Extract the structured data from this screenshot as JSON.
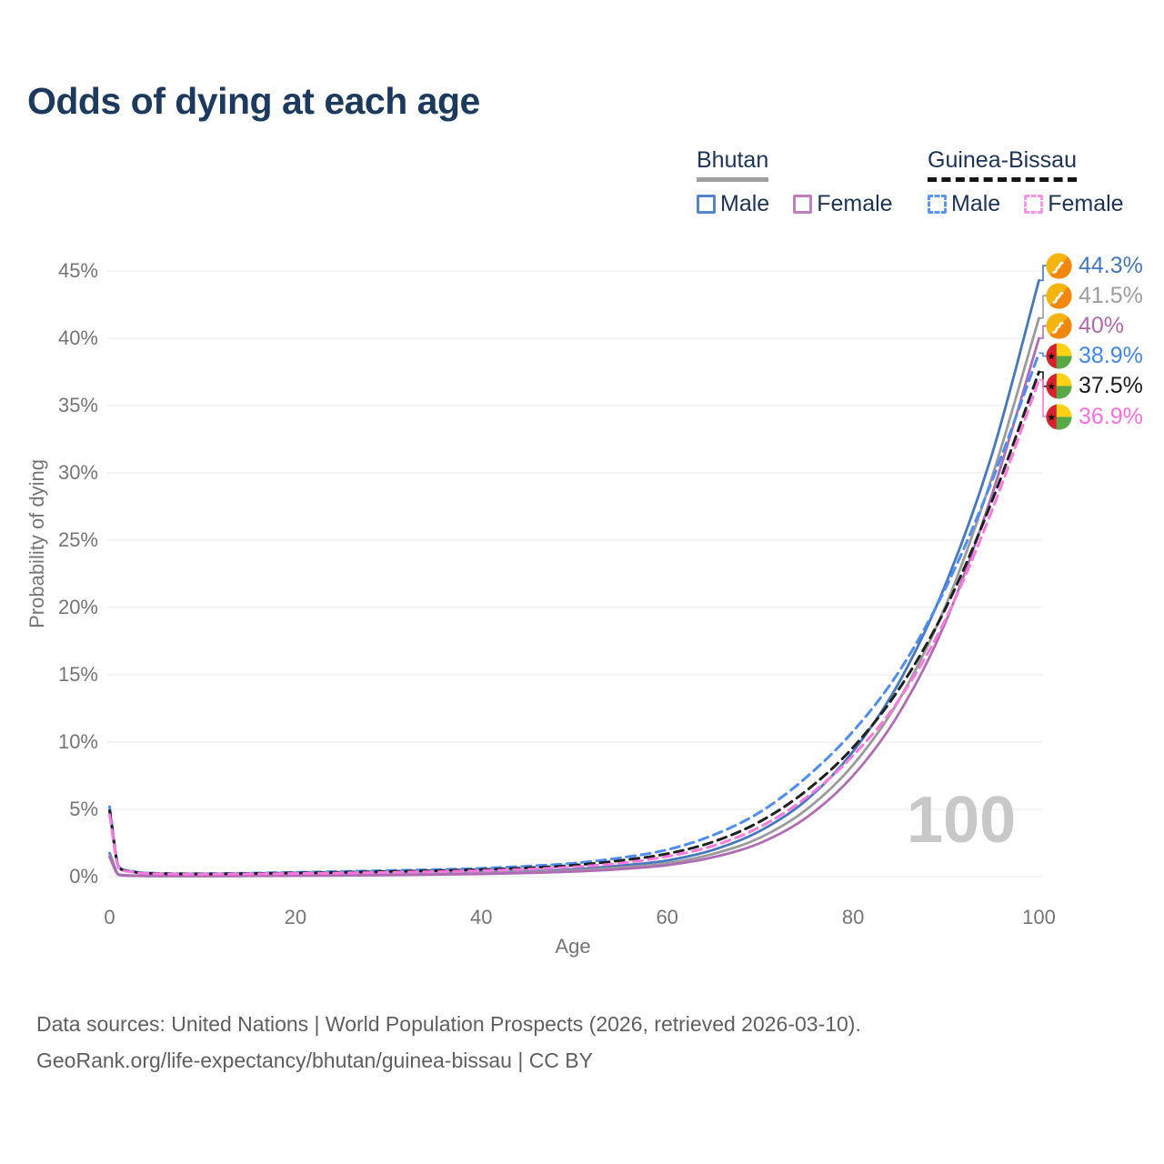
{
  "title": "Odds of dying at each age",
  "watermark": "100",
  "legend": {
    "groups": [
      {
        "label": "Bhutan",
        "line_style": "solid",
        "underline_color": "#a0a0a0",
        "items": [
          {
            "label": "Male",
            "color": "#4577bd"
          },
          {
            "label": "Female",
            "color": "#b16bb5"
          }
        ]
      },
      {
        "label": "Guinea-Bissau",
        "line_style": "dashed",
        "underline_color": "#151515",
        "items": [
          {
            "label": "Male",
            "color": "#4e8df2"
          },
          {
            "label": "Female",
            "color": "#ff78df"
          }
        ]
      }
    ]
  },
  "footer": {
    "line1": "Data sources: United Nations | World Population Prospects (2026, retrieved 2026-03-10).",
    "line2": "GeoRank.org/life-expectancy/bhutan/guinea-bissau | CC BY"
  },
  "chart_data": {
    "type": "line",
    "title": "Odds of dying at each age",
    "xlabel": "Age",
    "ylabel": "Probability of dying",
    "xlim": [
      0,
      100
    ],
    "ylim": [
      0,
      45
    ],
    "x_ticks": [
      0,
      20,
      40,
      60,
      80,
      100
    ],
    "y_ticks": [
      0,
      5,
      10,
      15,
      20,
      25,
      30,
      35,
      40,
      45
    ],
    "y_tick_suffix": "%",
    "grid": true,
    "grid_color": "#ededef",
    "legend_position": "top-right",
    "x": [
      0,
      1,
      2,
      3,
      5,
      10,
      15,
      20,
      25,
      30,
      35,
      40,
      45,
      50,
      55,
      60,
      65,
      70,
      75,
      80,
      85,
      90,
      95,
      100
    ],
    "series": [
      {
        "name": "Bhutan Male",
        "country": "Bhutan",
        "sex": "male",
        "flag": "bt",
        "color": "#4577bd",
        "label_color": "#4577bd",
        "dash": "solid",
        "end_label": "44.3%",
        "end_value": 44.3,
        "values": [
          1.75,
          0.16,
          0.09,
          0.07,
          0.05,
          0.05,
          0.08,
          0.12,
          0.15,
          0.18,
          0.23,
          0.3,
          0.4,
          0.55,
          0.82,
          1.2,
          2.0,
          3.4,
          5.7,
          9.3,
          14.5,
          21.8,
          31.5,
          44.3
        ]
      },
      {
        "name": "Bhutan Both sexes",
        "country": "Bhutan",
        "sex": "both",
        "flag": "bt",
        "color": "#9b9b9b",
        "label_color": "#9e9e9e",
        "dash": "solid",
        "end_label": "41.5%",
        "end_value": 41.5,
        "values": [
          1.6,
          0.14,
          0.08,
          0.06,
          0.05,
          0.04,
          0.06,
          0.09,
          0.12,
          0.15,
          0.19,
          0.25,
          0.33,
          0.46,
          0.68,
          1.0,
          1.7,
          2.9,
          5.0,
          8.3,
          13.2,
          20.2,
          29.8,
          41.5
        ]
      },
      {
        "name": "Bhutan Female",
        "country": "Bhutan",
        "sex": "female",
        "flag": "bt",
        "color": "#b16bb5",
        "label_color": "#b467ae",
        "dash": "solid",
        "end_label": "40%",
        "end_value": 40,
        "values": [
          1.45,
          0.13,
          0.07,
          0.06,
          0.04,
          0.04,
          0.05,
          0.07,
          0.09,
          0.11,
          0.15,
          0.2,
          0.27,
          0.38,
          0.56,
          0.85,
          1.45,
          2.5,
          4.4,
          7.5,
          12.2,
          19.0,
          28.5,
          40.0
        ]
      },
      {
        "name": "Guinea-Bissau Male",
        "country": "Guinea-Bissau",
        "sex": "male",
        "flag": "gw",
        "color": "#4e8df2",
        "label_color": "#3f86f0",
        "dash": "dashed",
        "end_label": "38.9%",
        "end_value": 38.9,
        "values": [
          5.2,
          0.75,
          0.45,
          0.33,
          0.25,
          0.22,
          0.26,
          0.32,
          0.38,
          0.45,
          0.52,
          0.62,
          0.78,
          1.0,
          1.4,
          2.0,
          3.1,
          4.8,
          7.4,
          10.8,
          15.3,
          21.5,
          29.5,
          38.9
        ]
      },
      {
        "name": "Guinea-Bissau Both sexes",
        "country": "Guinea-Bissau",
        "sex": "both",
        "flag": "gw",
        "color": "#202020",
        "label_color": "#1a1a1a",
        "dash": "dashed",
        "end_label": "37.5%",
        "end_value": 37.5,
        "values": [
          4.9,
          0.7,
          0.42,
          0.3,
          0.23,
          0.2,
          0.23,
          0.27,
          0.32,
          0.38,
          0.44,
          0.52,
          0.65,
          0.85,
          1.2,
          1.7,
          2.6,
          4.1,
          6.4,
          9.6,
          14.0,
          20.0,
          28.0,
          37.5
        ]
      },
      {
        "name": "Guinea-Bissau Female",
        "country": "Guinea-Bissau",
        "sex": "female",
        "flag": "gw",
        "color": "#ff78df",
        "label_color": "#ff6ede",
        "dash": "dashed",
        "end_label": "36.9%",
        "end_value": 36.9,
        "values": [
          4.6,
          0.65,
          0.39,
          0.28,
          0.21,
          0.18,
          0.2,
          0.23,
          0.27,
          0.31,
          0.37,
          0.44,
          0.55,
          0.72,
          1.0,
          1.5,
          2.3,
          3.7,
          5.9,
          9.0,
          13.2,
          19.2,
          27.3,
          36.9
        ]
      }
    ]
  }
}
